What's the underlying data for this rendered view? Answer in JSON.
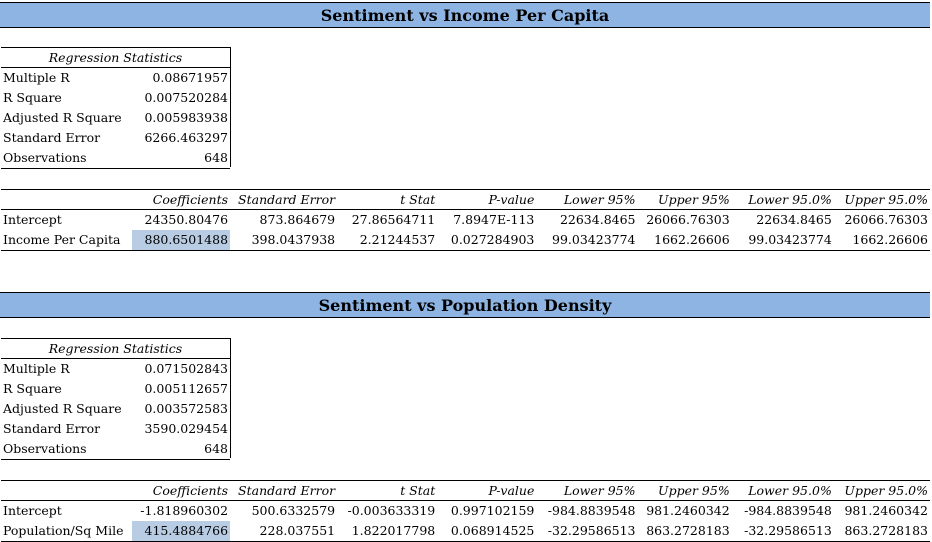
{
  "sections": [
    {
      "title": "Sentiment vs Income Per Capita",
      "regression_header": "Regression Statistics",
      "stats": [
        {
          "label": "Multiple R",
          "value": "0.08671957"
        },
        {
          "label": "R Square",
          "value": "0.007520284"
        },
        {
          "label": "Adjusted R Square",
          "value": "0.005983938"
        },
        {
          "label": "Standard Error",
          "value": "6266.463297"
        },
        {
          "label": "Observations",
          "value": "648"
        }
      ],
      "coef_headers": [
        "",
        "Coefficients",
        "Standard Error",
        "t Stat",
        "P-value",
        "Lower 95%",
        "Upper 95%",
        "Lower 95.0%",
        "Upper 95.0%"
      ],
      "rows": [
        [
          "Intercept",
          "24350.80476",
          "873.864679",
          "27.86564711",
          "7.8947E-113",
          "22634.8465",
          "26066.76303",
          "22634.8465",
          "26066.76303"
        ],
        [
          "Income Per Capita",
          "880.6501488",
          "398.0437938",
          "2.21244537",
          "0.027284903",
          "99.03423774",
          "1662.26606",
          "99.03423774",
          "1662.26606"
        ]
      ]
    },
    {
      "title": "Sentiment vs Population Density",
      "regression_header": "Regression Statistics",
      "stats": [
        {
          "label": "Multiple R",
          "value": "0.071502843"
        },
        {
          "label": "R Square",
          "value": "0.005112657"
        },
        {
          "label": "Adjusted R Square",
          "value": "0.003572583"
        },
        {
          "label": "Standard Error",
          "value": "3590.029454"
        },
        {
          "label": "Observations",
          "value": "648"
        }
      ],
      "coef_headers": [
        "",
        "Coefficients",
        "Standard Error",
        "t Stat",
        "P-value",
        "Lower 95%",
        "Upper 95%",
        "Lower 95.0%",
        "Upper 95.0%"
      ],
      "rows": [
        [
          "Intercept",
          "-1.818960302",
          "500.6332579",
          "-0.003633319",
          "0.997102159",
          "-984.8839548",
          "981.2460342",
          "-984.8839548",
          "981.2460342"
        ],
        [
          "Population/Sq Mile",
          "415.4884766",
          "228.037551",
          "1.822017798",
          "0.068914525",
          "-32.29586513",
          "863.2728183",
          "-32.29586513",
          "863.2728183"
        ]
      ]
    }
  ],
  "colors": {
    "banner": "#8db4e2",
    "highlight": "#b8cce4"
  }
}
